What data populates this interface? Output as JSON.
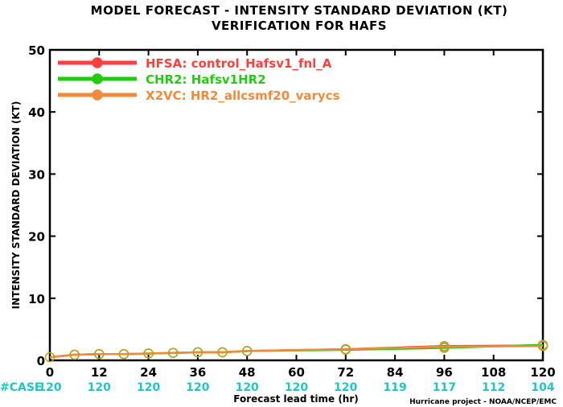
{
  "chart_data": {
    "type": "line",
    "title": "MODEL FORECAST - INTENSITY STANDARD DEVIATION (KT)",
    "subtitle": "VERIFICATION FOR HAFS",
    "xlabel": "Forecast lead time (hr)",
    "ylabel": "INTENSITY STANDARD DEVIATION (KT)",
    "xlim": [
      0,
      120
    ],
    "ylim": [
      0,
      50
    ],
    "xticks": [
      0,
      12,
      24,
      36,
      48,
      60,
      72,
      84,
      96,
      108,
      120
    ],
    "yticks": [
      0,
      10,
      20,
      30,
      40,
      50
    ],
    "legend_position": "top-left",
    "case_label": "#CASE",
    "case_counts": [
      {
        "x": 0,
        "label": "120"
      },
      {
        "x": 12,
        "label": "120"
      },
      {
        "x": 24,
        "label": "120"
      },
      {
        "x": 36,
        "label": "120"
      },
      {
        "x": 48,
        "label": "120"
      },
      {
        "x": 60,
        "label": "120"
      },
      {
        "x": 72,
        "label": "120"
      },
      {
        "x": 84,
        "label": "119"
      },
      {
        "x": 96,
        "label": "117"
      },
      {
        "x": 108,
        "label": "112"
      },
      {
        "x": 120,
        "label": "104"
      }
    ],
    "x": [
      0,
      6,
      12,
      18,
      24,
      30,
      36,
      42,
      48,
      72,
      96,
      120
    ],
    "series": [
      {
        "name": "HFSA: control_Hafsv1_fnl_A",
        "color": "#ff4040",
        "values": [
          0.5,
          0.9,
          1.0,
          1.0,
          1.1,
          1.2,
          1.3,
          1.3,
          1.5,
          1.8,
          2.3,
          2.4
        ]
      },
      {
        "name": "CHR2: Hafsv1HR2",
        "color": "#22cc11",
        "values": [
          0.5,
          0.9,
          1.0,
          1.0,
          1.1,
          1.2,
          1.3,
          1.3,
          1.5,
          1.7,
          2.0,
          2.5
        ]
      },
      {
        "name": "X2VC: HR2_allcsmf20_varycs",
        "color": "#f08a3c",
        "values": [
          0.5,
          0.9,
          1.0,
          1.0,
          1.1,
          1.2,
          1.3,
          1.3,
          1.5,
          1.8,
          2.2,
          2.3
        ]
      }
    ],
    "case_color": "#22c4c4",
    "marker_edge_color": "#b8a22a"
  },
  "footer": "Hurricane project - NOAA/NCEP/EMC"
}
